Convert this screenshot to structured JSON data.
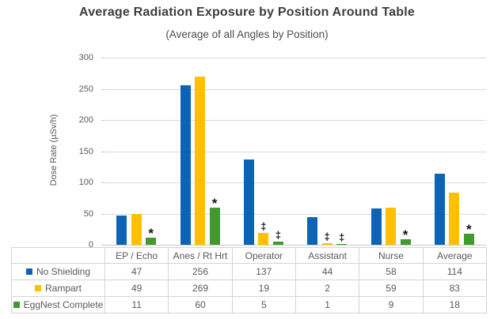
{
  "chart_data": {
    "type": "bar",
    "title": "Average Radiation Exposure by Position Around Table",
    "subtitle": "(Average of all Angles by Position)",
    "ylabel": "Dose Rate (µSv/h)",
    "ylim": [
      0,
      300
    ],
    "ytick_step": 50,
    "grid": "horizontal",
    "legend_position": "data-table-left",
    "categories": [
      "EP / Echo",
      "Anes / Rt Hrt",
      "Operator",
      "Assistant",
      "Nurse",
      "Average"
    ],
    "series": [
      {
        "name": "No Shielding",
        "color": "#0f63b5",
        "values": [
          47,
          256,
          137,
          44,
          58,
          114
        ],
        "annotations": [
          "",
          "",
          "",
          "",
          "",
          ""
        ]
      },
      {
        "name": "Rampart",
        "color": "#ffc000",
        "values": [
          49,
          269,
          19,
          2,
          59,
          83
        ],
        "annotations": [
          "",
          "",
          "‡",
          "‡",
          "",
          ""
        ]
      },
      {
        "name": "EggNest Complete",
        "color": "#43992c",
        "values": [
          11,
          60,
          5,
          1,
          9,
          18
        ],
        "annotations": [
          "*",
          "*",
          "‡",
          "‡",
          "*",
          "*"
        ]
      }
    ],
    "annotation_marks": {
      "star": "*",
      "double_dagger": "‡"
    },
    "colors": {
      "grid": "#d9d9d9",
      "axis_text": "#595959",
      "title_text": "#3d3d3d",
      "table_border": "#d4d4d4"
    }
  }
}
